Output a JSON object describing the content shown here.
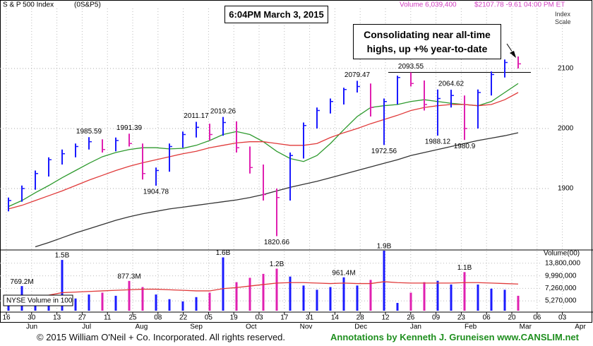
{
  "chart_data": {
    "type": "ohlc",
    "title": "S & P 500 Index",
    "symbol": "(0S&P5)",
    "volume_text": "Volume 6,039,400",
    "quote": "$2107.78 -9.61 04:00 PM ET",
    "axis_label": "Index Scale",
    "timestamp": "6:04PM March 3, 2015",
    "annotation": "Consolidating near all-time highs, up +% year-to-date",
    "x_days": [
      "16",
      "30",
      "13",
      "27",
      "11",
      "25",
      "08",
      "22",
      "05",
      "19",
      "03",
      "17",
      "31",
      "14",
      "28",
      "12",
      "26",
      "09",
      "23",
      "06",
      "20",
      "06",
      "03"
    ],
    "x_months": [
      "Jun",
      "Jul",
      "Aug",
      "Sep",
      "Oct",
      "Nov",
      "Dec",
      "Jan",
      "Feb",
      "Mar",
      "Apr"
    ],
    "ylim": [
      1800,
      2200
    ],
    "yticks": [
      1900,
      2000,
      2100
    ],
    "grid": true,
    "price": {
      "up_color": "#1a1aff",
      "down_color": "#e020b0",
      "low": [
        1862,
        1878,
        1898,
        1920,
        1940,
        1952,
        1965,
        1960,
        1962,
        1970,
        1915,
        1904.78,
        1928,
        1968,
        1985,
        1980,
        1988,
        1960,
        1925,
        1880,
        1820.66,
        1880,
        1950,
        2000,
        2025,
        2040,
        2060,
        2020,
        1972.56,
        2040,
        2070,
        2030,
        1988.12,
        2035,
        1980.9,
        2000,
        2055,
        2085,
        2100
      ],
      "high": [
        1885,
        1905,
        1930,
        1952,
        1965,
        1975,
        1985.59,
        1982,
        1985,
        1991.39,
        1975,
        1935,
        1975,
        1995,
        2011.17,
        2008,
        2019.26,
        2012,
        1970,
        1940,
        1900,
        1960,
        2010,
        2035,
        2050,
        2068,
        2079.47,
        2075,
        2050,
        2088,
        2093.55,
        2080,
        2065,
        2064.62,
        2055,
        2065,
        2095,
        2115,
        2120
      ],
      "close": [
        1880,
        1900,
        1925,
        1948,
        1958,
        1970,
        1978,
        1965,
        1980,
        1975,
        1925,
        1930,
        1970,
        1990,
        2002,
        1990,
        2010,
        1968,
        1935,
        1890,
        1885,
        1955,
        2005,
        2030,
        2045,
        2065,
        2070,
        2035,
        2045,
        2085,
        2075,
        2040,
        2050,
        2055,
        2000,
        2060,
        2090,
        2110,
        2107.78
      ]
    },
    "moving_averages": [
      {
        "color": "#2e9a2e",
        "values": [
          1870,
          1880,
          1893,
          1905,
          1918,
          1930,
          1942,
          1953,
          1960,
          1965,
          1968,
          1968,
          1966,
          1967,
          1972,
          1980,
          1990,
          1995,
          1990,
          1978,
          1962,
          1950,
          1945,
          1955,
          1975,
          1998,
          2020,
          2035,
          2038,
          2040,
          2045,
          2048,
          2045,
          2042,
          2040,
          2038,
          2045,
          2060,
          2075
        ]
      },
      {
        "color": "#e03a3a",
        "values": [
          1866,
          1872,
          1880,
          1888,
          1896,
          1905,
          1914,
          1922,
          1930,
          1937,
          1943,
          1948,
          1953,
          1958,
          1962,
          1968,
          1972,
          1976,
          1978,
          1978,
          1975,
          1972,
          1972,
          1975,
          1985,
          1993,
          2000,
          2008,
          2015,
          2022,
          2030,
          2035,
          2038,
          2040,
          2040,
          2038,
          2040,
          2048,
          2060
        ]
      },
      {
        "color": "#333333",
        "values": [
          null,
          null,
          1803,
          1810,
          1818,
          1826,
          1833,
          1840,
          1847,
          1853,
          1858,
          1862,
          1866,
          1869,
          1872,
          1875,
          1878,
          1881,
          1885,
          1890,
          1896,
          1902,
          1907,
          1912,
          1918,
          1924,
          1930,
          1936,
          1942,
          1948,
          1955,
          1960,
          1965,
          1970,
          1975,
          1980,
          1984,
          1988,
          1993
        ]
      }
    ],
    "volume": {
      "axis_label": "Volume(00)",
      "note": "NYSE Volume in 100",
      "log_scale": true,
      "ylim": [
        4100000,
        19000000
      ],
      "yticks": [
        {
          "value": 13800000,
          "label": "13,800,000"
        },
        {
          "value": 9990000,
          "label": "9,990,000"
        },
        {
          "value": 7260000,
          "label": "7,260,000"
        },
        {
          "value": 5270000,
          "label": "5,270,000"
        }
      ],
      "values": [
        5800000,
        7692000,
        5500000,
        6000000,
        15000000,
        5600000,
        6200000,
        6500000,
        6000000,
        8773000,
        7500000,
        6200000,
        5500000,
        5200000,
        5800000,
        6500000,
        16000000,
        8500000,
        9500000,
        10500000,
        12000000,
        9800000,
        7800000,
        7000000,
        7500000,
        9614000,
        7800000,
        9000000,
        19000000,
        5000000,
        6500000,
        8500000,
        8800000,
        8000000,
        11000000,
        8000000,
        7200000,
        7000000,
        6000000
      ],
      "value_labels": [
        null,
        "769.2M",
        null,
        null,
        "1.5B",
        null,
        null,
        null,
        null,
        "877.3M",
        null,
        null,
        null,
        null,
        null,
        null,
        "1.6B",
        null,
        null,
        null,
        "1.2B",
        null,
        null,
        null,
        null,
        "961.4M",
        null,
        null,
        "1.9B",
        null,
        null,
        null,
        null,
        null,
        "1.1B",
        null,
        null,
        null,
        null
      ],
      "average_color": "#e03a3a",
      "average": [
        5600000,
        5700000,
        5900000,
        6100000,
        6500000,
        6600000,
        6700000,
        6800000,
        6900000,
        7000000,
        7100000,
        7100000,
        7000000,
        6900000,
        6800000,
        6800000,
        7200000,
        7400000,
        7700000,
        8000000,
        8300000,
        8400000,
        8400000,
        8300000,
        8200000,
        8300000,
        8200000,
        8200000,
        8600000,
        8400000,
        8300000,
        8300000,
        8300000,
        8300000,
        8400000,
        8400000,
        8300000,
        8200000,
        8100000
      ]
    }
  },
  "footer": {
    "copyright": "© 2015 William O'Neil + Co. Incorporated. All rights reserved.",
    "credit": "Annotations by Kenneth J. Gruneisen www.CANSLIM.net"
  }
}
